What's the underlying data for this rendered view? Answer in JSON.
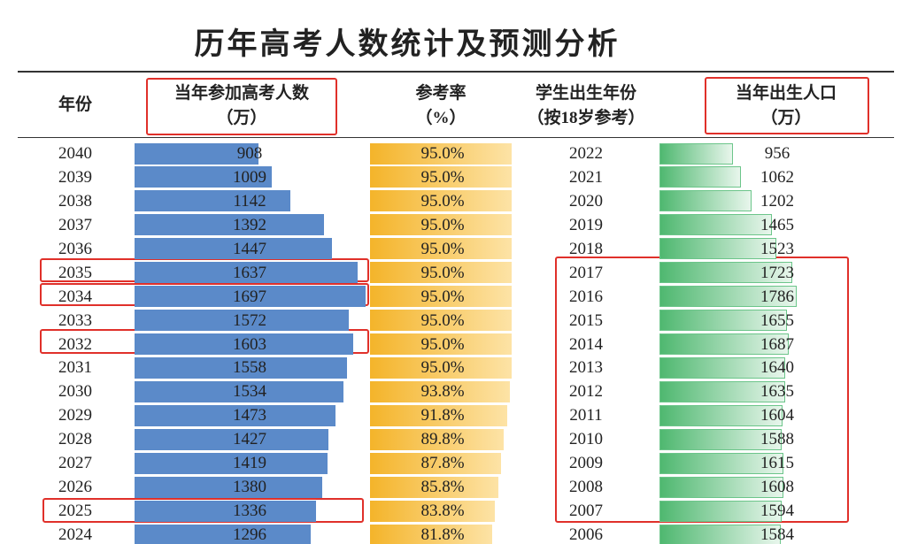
{
  "title": "历年高考人数统计及预测分析",
  "table": {
    "headers": [
      [
        "年份"
      ],
      [
        "当年参加高考人数",
        "（万）"
      ],
      [
        "参考率",
        "（%）"
      ],
      [
        "学生出生年份",
        "（按18岁参考）"
      ],
      [
        "当年出生人口",
        "（万）"
      ]
    ],
    "rows": [
      [
        "2040",
        "908",
        "95.0%",
        "2022",
        "956"
      ],
      [
        "2039",
        "1009",
        "95.0%",
        "2021",
        "1062"
      ],
      [
        "2038",
        "1142",
        "95.0%",
        "2020",
        "1202"
      ],
      [
        "2037",
        "1392",
        "95.0%",
        "2019",
        "1465"
      ],
      [
        "2036",
        "1447",
        "95.0%",
        "2018",
        "1523"
      ],
      [
        "2035",
        "1637",
        "95.0%",
        "2017",
        "1723"
      ],
      [
        "2034",
        "1697",
        "95.0%",
        "2016",
        "1786"
      ],
      [
        "2033",
        "1572",
        "95.0%",
        "2015",
        "1655"
      ],
      [
        "2032",
        "1603",
        "95.0%",
        "2014",
        "1687"
      ],
      [
        "2031",
        "1558",
        "95.0%",
        "2013",
        "1640"
      ],
      [
        "2030",
        "1534",
        "93.8%",
        "2012",
        "1635"
      ],
      [
        "2029",
        "1473",
        "91.8%",
        "2011",
        "1604"
      ],
      [
        "2028",
        "1427",
        "89.8%",
        "2010",
        "1588"
      ],
      [
        "2027",
        "1419",
        "87.8%",
        "2009",
        "1615"
      ],
      [
        "2026",
        "1380",
        "85.8%",
        "2008",
        "1608"
      ],
      [
        "2025",
        "1336",
        "83.8%",
        "2007",
        "1594"
      ],
      [
        "2024",
        "1296",
        "81.8%",
        "2006",
        "1584"
      ]
    ]
  }
}
